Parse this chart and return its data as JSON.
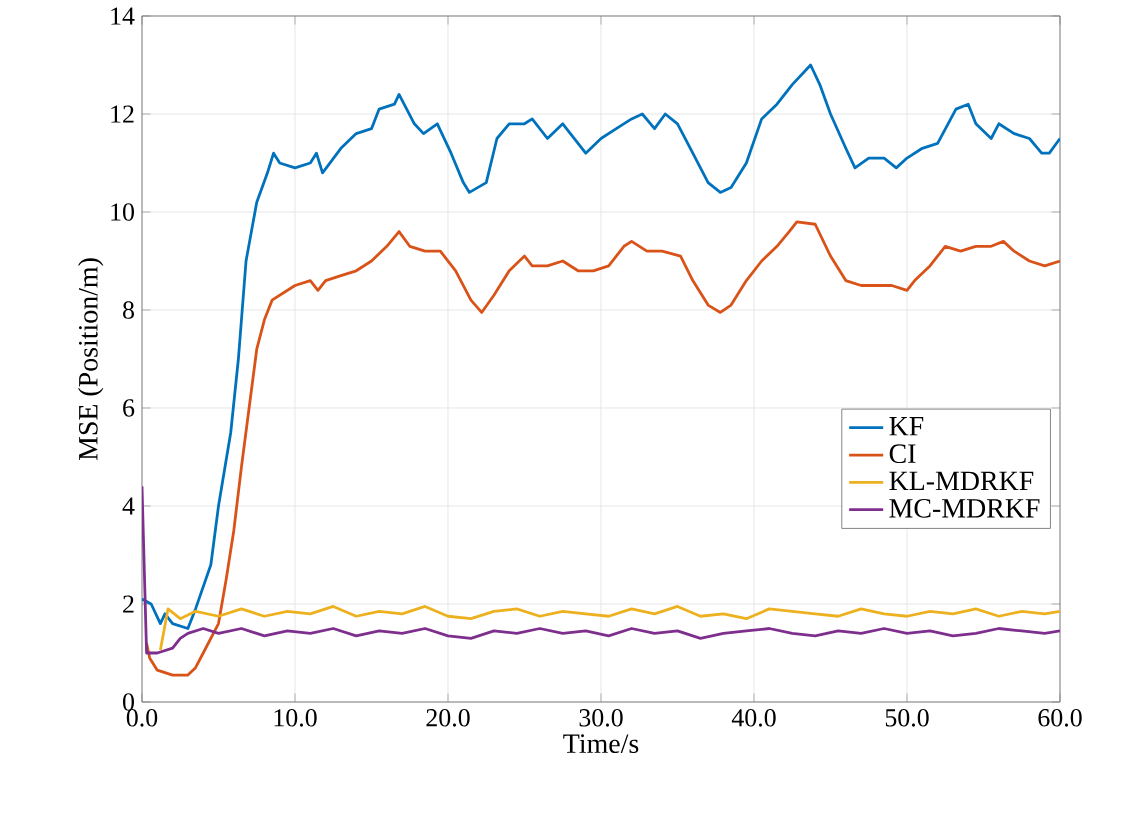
{
  "chart_data": {
    "type": "line",
    "xlabel": "Time/s",
    "ylabel": "MSE (Position/m)",
    "xlim": [
      0,
      60
    ],
    "ylim": [
      0,
      14
    ],
    "xticks": [
      {
        "value": 0,
        "label": "0.0"
      },
      {
        "value": 10,
        "label": "10.0"
      },
      {
        "value": 20,
        "label": "20.0"
      },
      {
        "value": 30,
        "label": "30.0"
      },
      {
        "value": 40,
        "label": "40.0"
      },
      {
        "value": 50,
        "label": "50.0"
      },
      {
        "value": 60,
        "label": "60.0"
      }
    ],
    "yticks": [
      0,
      2,
      4,
      6,
      8,
      10,
      12,
      14
    ],
    "grid": true,
    "legend": "right",
    "marker": "none",
    "line_style": "solid",
    "series": [
      {
        "name": "KF",
        "color": "#0072bd",
        "x": [
          0,
          0.6,
          1.2,
          1.5,
          2,
          3,
          3.5,
          4.5,
          5,
          5.8,
          6.3,
          6.8,
          7.5,
          8.2,
          8.6,
          9,
          10,
          11,
          11.4,
          11.8,
          13,
          14,
          15,
          15.5,
          16.5,
          16.8,
          17.8,
          18.4,
          19.3,
          20.2,
          21,
          21.4,
          22.5,
          23.2,
          24,
          25,
          25.5,
          26.5,
          27.5,
          28,
          29,
          30,
          31,
          32,
          32.7,
          33.5,
          34.2,
          35,
          36,
          37,
          37.8,
          38.5,
          39.5,
          40.5,
          41.5,
          42.5,
          43.7,
          44.3,
          45,
          46,
          46.6,
          47.5,
          48.5,
          49.3,
          50,
          51,
          52,
          53.2,
          54,
          54.5,
          55.5,
          56,
          57,
          58,
          58.8,
          59.3,
          60
        ],
        "values": [
          2.1,
          2.0,
          1.6,
          1.8,
          1.6,
          1.5,
          1.9,
          2.8,
          4.0,
          5.5,
          7.0,
          9.0,
          10.2,
          10.8,
          11.2,
          11.0,
          10.9,
          11.0,
          11.2,
          10.8,
          11.3,
          11.6,
          11.7,
          12.1,
          12.2,
          12.4,
          11.8,
          11.6,
          11.8,
          11.2,
          10.6,
          10.4,
          10.6,
          11.5,
          11.8,
          11.8,
          11.9,
          11.5,
          11.8,
          11.6,
          11.2,
          11.5,
          11.7,
          11.9,
          12.0,
          11.7,
          12.0,
          11.8,
          11.2,
          10.6,
          10.4,
          10.5,
          11.0,
          11.9,
          12.2,
          12.6,
          13.0,
          12.6,
          12.0,
          11.3,
          10.9,
          11.1,
          11.1,
          10.9,
          11.1,
          11.3,
          11.4,
          12.1,
          12.2,
          11.8,
          11.5,
          11.8,
          11.6,
          11.5,
          11.2,
          11.2,
          11.5
        ]
      },
      {
        "name": "CI",
        "color": "#d95319",
        "x": [
          0.3,
          0.5,
          1,
          2,
          3,
          3.5,
          4,
          5,
          5.5,
          6,
          6.5,
          7,
          7.5,
          8,
          8.5,
          9,
          10,
          11,
          11.5,
          12,
          13,
          14,
          15,
          16,
          16.8,
          17.5,
          18.5,
          19.5,
          20.5,
          21.5,
          22.2,
          23,
          24,
          25,
          25.5,
          26.5,
          27.5,
          28.5,
          29.5,
          30.5,
          31.5,
          32,
          33,
          34,
          35.2,
          36,
          37,
          37.8,
          38.5,
          39.5,
          40.5,
          41.5,
          42.3,
          42.8,
          44,
          45,
          46,
          47,
          48,
          49,
          50,
          50.5,
          51.5,
          52.5,
          53.5,
          54.5,
          55.5,
          56.3,
          57,
          58,
          59,
          60
        ],
        "values": [
          1.2,
          0.9,
          0.65,
          0.55,
          0.55,
          0.7,
          1.0,
          1.6,
          2.5,
          3.5,
          4.8,
          6.0,
          7.2,
          7.8,
          8.2,
          8.3,
          8.5,
          8.6,
          8.4,
          8.6,
          8.7,
          8.8,
          9.0,
          9.3,
          9.6,
          9.3,
          9.2,
          9.2,
          8.8,
          8.2,
          7.95,
          8.3,
          8.8,
          9.1,
          8.9,
          8.9,
          9.0,
          8.8,
          8.8,
          8.9,
          9.3,
          9.4,
          9.2,
          9.2,
          9.1,
          8.6,
          8.1,
          7.95,
          8.1,
          8.6,
          9.0,
          9.3,
          9.6,
          9.8,
          9.75,
          9.1,
          8.6,
          8.5,
          8.5,
          8.5,
          8.4,
          8.6,
          8.9,
          9.3,
          9.2,
          9.3,
          9.3,
          9.4,
          9.2,
          9.0,
          8.9,
          9.0
        ]
      },
      {
        "name": "KL-MDRKF",
        "color": "#edb120",
        "x": [
          1.2,
          1.7,
          2.5,
          3.5,
          5,
          6.5,
          8,
          9.5,
          11,
          12.5,
          14,
          15.5,
          17,
          18.5,
          20,
          21.5,
          23,
          24.5,
          26,
          27.5,
          29,
          30.5,
          32,
          33.5,
          35,
          36.5,
          38,
          39.5,
          41,
          42.5,
          44,
          45.5,
          47,
          48.5,
          50,
          51.5,
          53,
          54.5,
          56,
          57.5,
          59,
          60
        ],
        "values": [
          1.06,
          1.9,
          1.7,
          1.85,
          1.75,
          1.9,
          1.75,
          1.85,
          1.8,
          1.95,
          1.75,
          1.85,
          1.8,
          1.95,
          1.75,
          1.7,
          1.85,
          1.9,
          1.75,
          1.85,
          1.8,
          1.75,
          1.9,
          1.8,
          1.95,
          1.75,
          1.8,
          1.7,
          1.9,
          1.85,
          1.8,
          1.75,
          1.9,
          1.8,
          1.75,
          1.85,
          1.8,
          1.9,
          1.75,
          1.85,
          1.8,
          1.85
        ]
      },
      {
        "name": "MC-MDRKF",
        "color": "#7e2f8e",
        "x": [
          0,
          0.3,
          1,
          2,
          2.5,
          3,
          4,
          5,
          6.5,
          8,
          9.5,
          11,
          12.5,
          14,
          15.5,
          17,
          18.5,
          20,
          21.5,
          23,
          24.5,
          26,
          27.5,
          29,
          30.5,
          32,
          33.5,
          35,
          36.5,
          38,
          39.5,
          41,
          42.5,
          44,
          45.5,
          47,
          48.5,
          50,
          51.5,
          53,
          54.5,
          56,
          57.5,
          59,
          60
        ],
        "values": [
          4.4,
          1.0,
          1.0,
          1.1,
          1.3,
          1.4,
          1.5,
          1.4,
          1.5,
          1.35,
          1.45,
          1.4,
          1.5,
          1.35,
          1.45,
          1.4,
          1.5,
          1.35,
          1.3,
          1.45,
          1.4,
          1.5,
          1.4,
          1.45,
          1.35,
          1.5,
          1.4,
          1.45,
          1.3,
          1.4,
          1.45,
          1.5,
          1.4,
          1.35,
          1.45,
          1.4,
          1.5,
          1.4,
          1.45,
          1.35,
          1.4,
          1.5,
          1.45,
          1.4,
          1.45
        ]
      }
    ]
  }
}
